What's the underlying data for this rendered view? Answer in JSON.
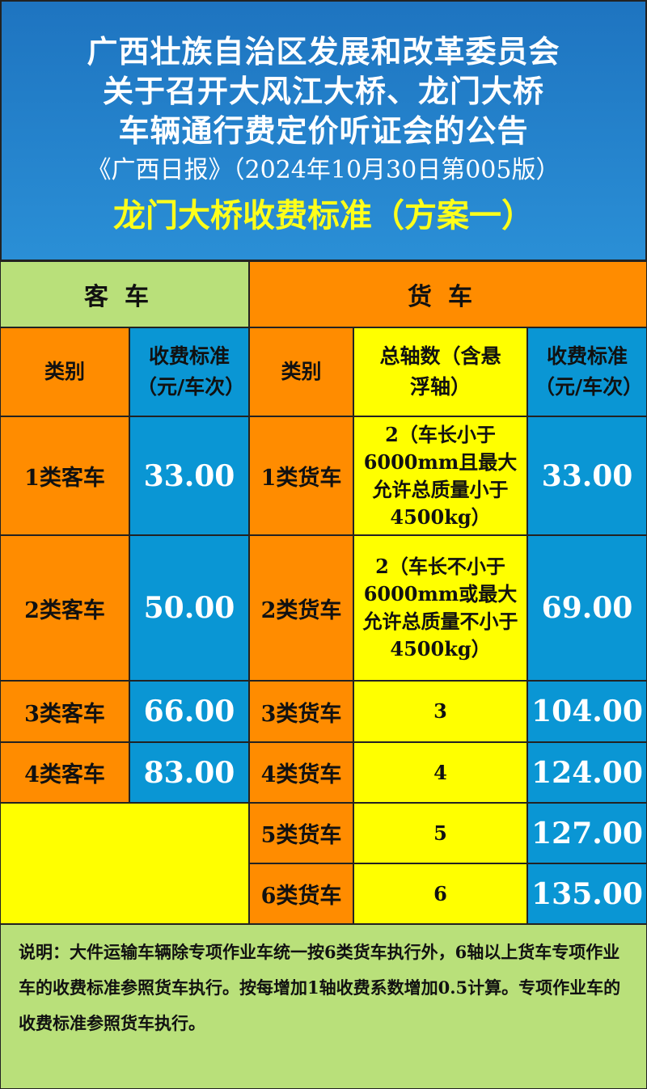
{
  "header": {
    "line1": "广西壮族自治区发展和改革委员会",
    "line2": "关于召开大风江大桥、龙门大桥",
    "line3": "车辆通行费定价听证会的公告",
    "source": "《广西日报》（2024年10月30日第005版）",
    "subtitle": "龙门大桥收费标准（方案一）"
  },
  "table": {
    "passenger_header": "客车",
    "truck_header": "货车",
    "col_category": "类别",
    "col_fee": "收费标准（元/车次）",
    "col_axles": "总轴数（含悬浮轴）",
    "passenger": [
      {
        "category": "1类客车",
        "fee": "33.00"
      },
      {
        "category": "2类客车",
        "fee": "50.00"
      },
      {
        "category": "3类客车",
        "fee": "66.00"
      },
      {
        "category": "4类客车",
        "fee": "83.00"
      }
    ],
    "truck": [
      {
        "category": "1类货车",
        "axles": "2（车长小于6000mm且最大允许总质量小于4500kg）",
        "fee": "33.00"
      },
      {
        "category": "2类货车",
        "axles": "2（车长不小于6000mm或最大允许总质量不小于4500kg）",
        "fee": "69.00"
      },
      {
        "category": "3类货车",
        "axles": "3",
        "fee": "104.00"
      },
      {
        "category": "4类货车",
        "axles": "4",
        "fee": "124.00"
      },
      {
        "category": "5类货车",
        "axles": "5",
        "fee": "127.00"
      },
      {
        "category": "6类货车",
        "axles": "6",
        "fee": "135.00"
      }
    ]
  },
  "colors": {
    "header_blue": "#1e74c0",
    "orange": "#ff8c00",
    "blue": "#0a96d4",
    "yellow": "#ffff00",
    "green": "#b9e07a"
  },
  "note": "说明：大件运输车辆除专项作业车统一按6类货车执行外，6轴以上货车专项作业车的收费标准参照货车执行。按每增加1轴收费系数增加0.5计算。专项作业车的收费标准参照货车执行。"
}
